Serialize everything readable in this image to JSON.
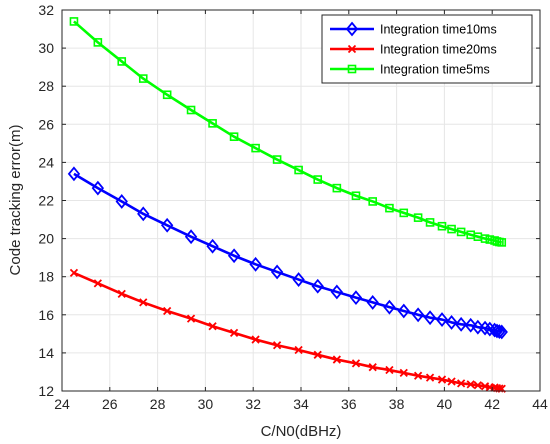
{
  "chart_data": {
    "type": "line",
    "xlabel": "C/N0(dBHz)",
    "ylabel": "Code tracking error(m)",
    "xlim": [
      24,
      44
    ],
    "ylim": [
      12,
      32
    ],
    "xticks": [
      24,
      26,
      28,
      30,
      32,
      34,
      36,
      38,
      40,
      42,
      44
    ],
    "yticks": [
      12,
      14,
      16,
      18,
      20,
      22,
      24,
      26,
      28,
      30,
      32
    ],
    "grid": true,
    "legend_position": "top-right",
    "series": [
      {
        "name": "Integration time10ms",
        "color": "#0000ff",
        "marker": "diamond",
        "x": [
          24.5,
          25.5,
          26.5,
          27.4,
          28.4,
          29.4,
          30.3,
          31.2,
          32.1,
          33.0,
          33.9,
          34.7,
          35.5,
          36.3,
          37.0,
          37.7,
          38.3,
          38.9,
          39.4,
          39.9,
          40.3,
          40.7,
          41.1,
          41.4,
          41.7,
          41.9,
          42.1,
          42.2,
          42.3,
          42.4
        ],
        "y": [
          23.4,
          22.65,
          21.95,
          21.3,
          20.7,
          20.1,
          19.6,
          19.1,
          18.65,
          18.25,
          17.85,
          17.5,
          17.2,
          16.9,
          16.65,
          16.4,
          16.2,
          16.0,
          15.85,
          15.75,
          15.6,
          15.5,
          15.45,
          15.35,
          15.3,
          15.25,
          15.2,
          15.15,
          15.12,
          15.1
        ]
      },
      {
        "name": "Integration time20ms",
        "color": "#ff0000",
        "marker": "x",
        "x": [
          24.5,
          25.5,
          26.5,
          27.4,
          28.4,
          29.4,
          30.3,
          31.2,
          32.1,
          33.0,
          33.9,
          34.7,
          35.5,
          36.3,
          37.0,
          37.7,
          38.3,
          38.9,
          39.4,
          39.9,
          40.3,
          40.7,
          41.1,
          41.4,
          41.7,
          41.9,
          42.1,
          42.2,
          42.3,
          42.4
        ],
        "y": [
          18.2,
          17.65,
          17.1,
          16.65,
          16.2,
          15.8,
          15.4,
          15.05,
          14.7,
          14.4,
          14.15,
          13.9,
          13.65,
          13.45,
          13.25,
          13.1,
          12.95,
          12.8,
          12.7,
          12.6,
          12.5,
          12.4,
          12.35,
          12.3,
          12.25,
          12.2,
          12.18,
          12.15,
          12.13,
          12.12
        ]
      },
      {
        "name": "Integration time5ms",
        "color": "#00ff00",
        "marker": "square",
        "x": [
          24.5,
          25.5,
          26.5,
          27.4,
          28.4,
          29.4,
          30.3,
          31.2,
          32.1,
          33.0,
          33.9,
          34.7,
          35.5,
          36.3,
          37.0,
          37.7,
          38.3,
          38.9,
          39.4,
          39.9,
          40.3,
          40.7,
          41.1,
          41.4,
          41.7,
          41.9,
          42.1,
          42.2,
          42.3,
          42.4
        ],
        "y": [
          31.4,
          30.3,
          29.3,
          28.4,
          27.55,
          26.75,
          26.05,
          25.35,
          24.75,
          24.15,
          23.6,
          23.1,
          22.65,
          22.25,
          21.95,
          21.6,
          21.35,
          21.1,
          20.85,
          20.65,
          20.5,
          20.35,
          20.2,
          20.1,
          20.0,
          19.95,
          19.9,
          19.85,
          19.82,
          19.8
        ]
      }
    ]
  }
}
